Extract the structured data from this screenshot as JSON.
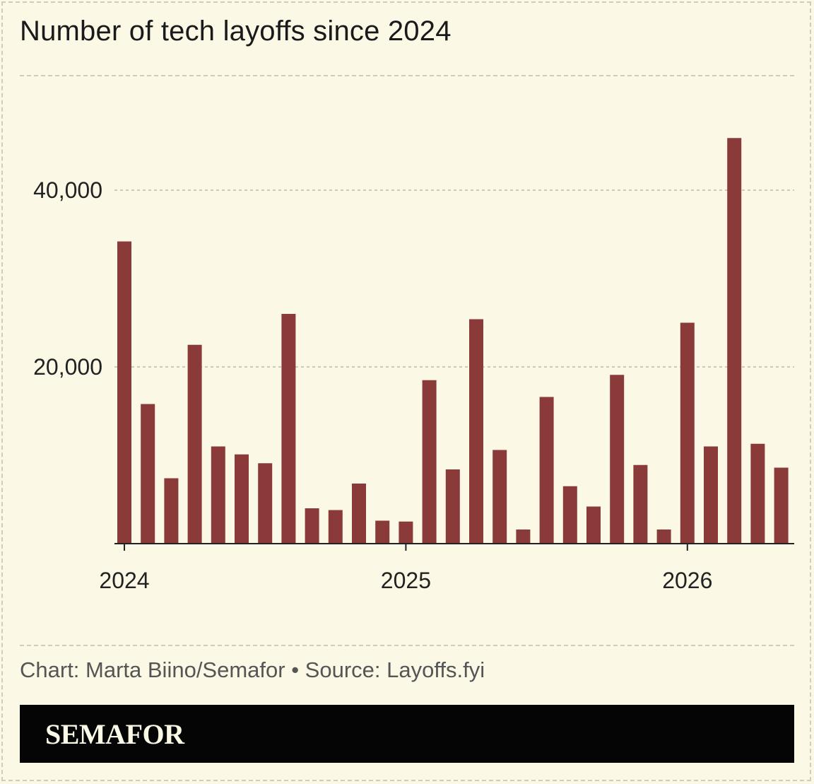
{
  "title": "Number of tech layoffs since 2024",
  "credit": "Chart: Marta Biino/Semafor • Source: Layoffs.fyi",
  "brand": "SEMAFOR",
  "colors": {
    "bar": "#8b3a3a",
    "background": "#fbf9e6",
    "brand_bg": "#050505",
    "grid": "#bdbbaa"
  },
  "chart_data": {
    "type": "bar",
    "title": "Number of tech layoffs since 2024",
    "xlabel": "",
    "ylabel": "",
    "ylim": [
      0,
      52000
    ],
    "grid": true,
    "y_ticks": [
      20000,
      40000
    ],
    "y_tick_labels": [
      "20,000",
      "40,000"
    ],
    "x_tick_labels": [
      {
        "label": "2024",
        "month_index": 0
      },
      {
        "label": "2025",
        "month_index": 12
      },
      {
        "label": "2026",
        "month_index": 24
      }
    ],
    "categories": [
      "Jan 2024",
      "Feb 2024",
      "Mar 2024",
      "Apr 2024",
      "May 2024",
      "Jun 2024",
      "Jul 2024",
      "Aug 2024",
      "Sep 2024",
      "Oct 2024",
      "Nov 2024",
      "Dec 2024",
      "Jan 2025",
      "Feb 2025",
      "Mar 2025",
      "Apr 2025",
      "May 2025",
      "Jun 2025",
      "Jul 2025",
      "Aug 2025",
      "Sep 2025",
      "Oct 2025",
      "Nov 2025",
      "Dec 2025",
      "Jan 2026",
      "Feb 2026",
      "Mar 2026",
      "Apr 2026",
      "May 2026"
    ],
    "values": [
      34200,
      15800,
      7400,
      22500,
      11000,
      10100,
      9100,
      26000,
      4000,
      3800,
      6800,
      2600,
      2500,
      18500,
      8400,
      25400,
      10600,
      1600,
      16600,
      6500,
      4200,
      19100,
      8900,
      1600,
      25000,
      11000,
      45900,
      11300,
      8600
    ]
  }
}
